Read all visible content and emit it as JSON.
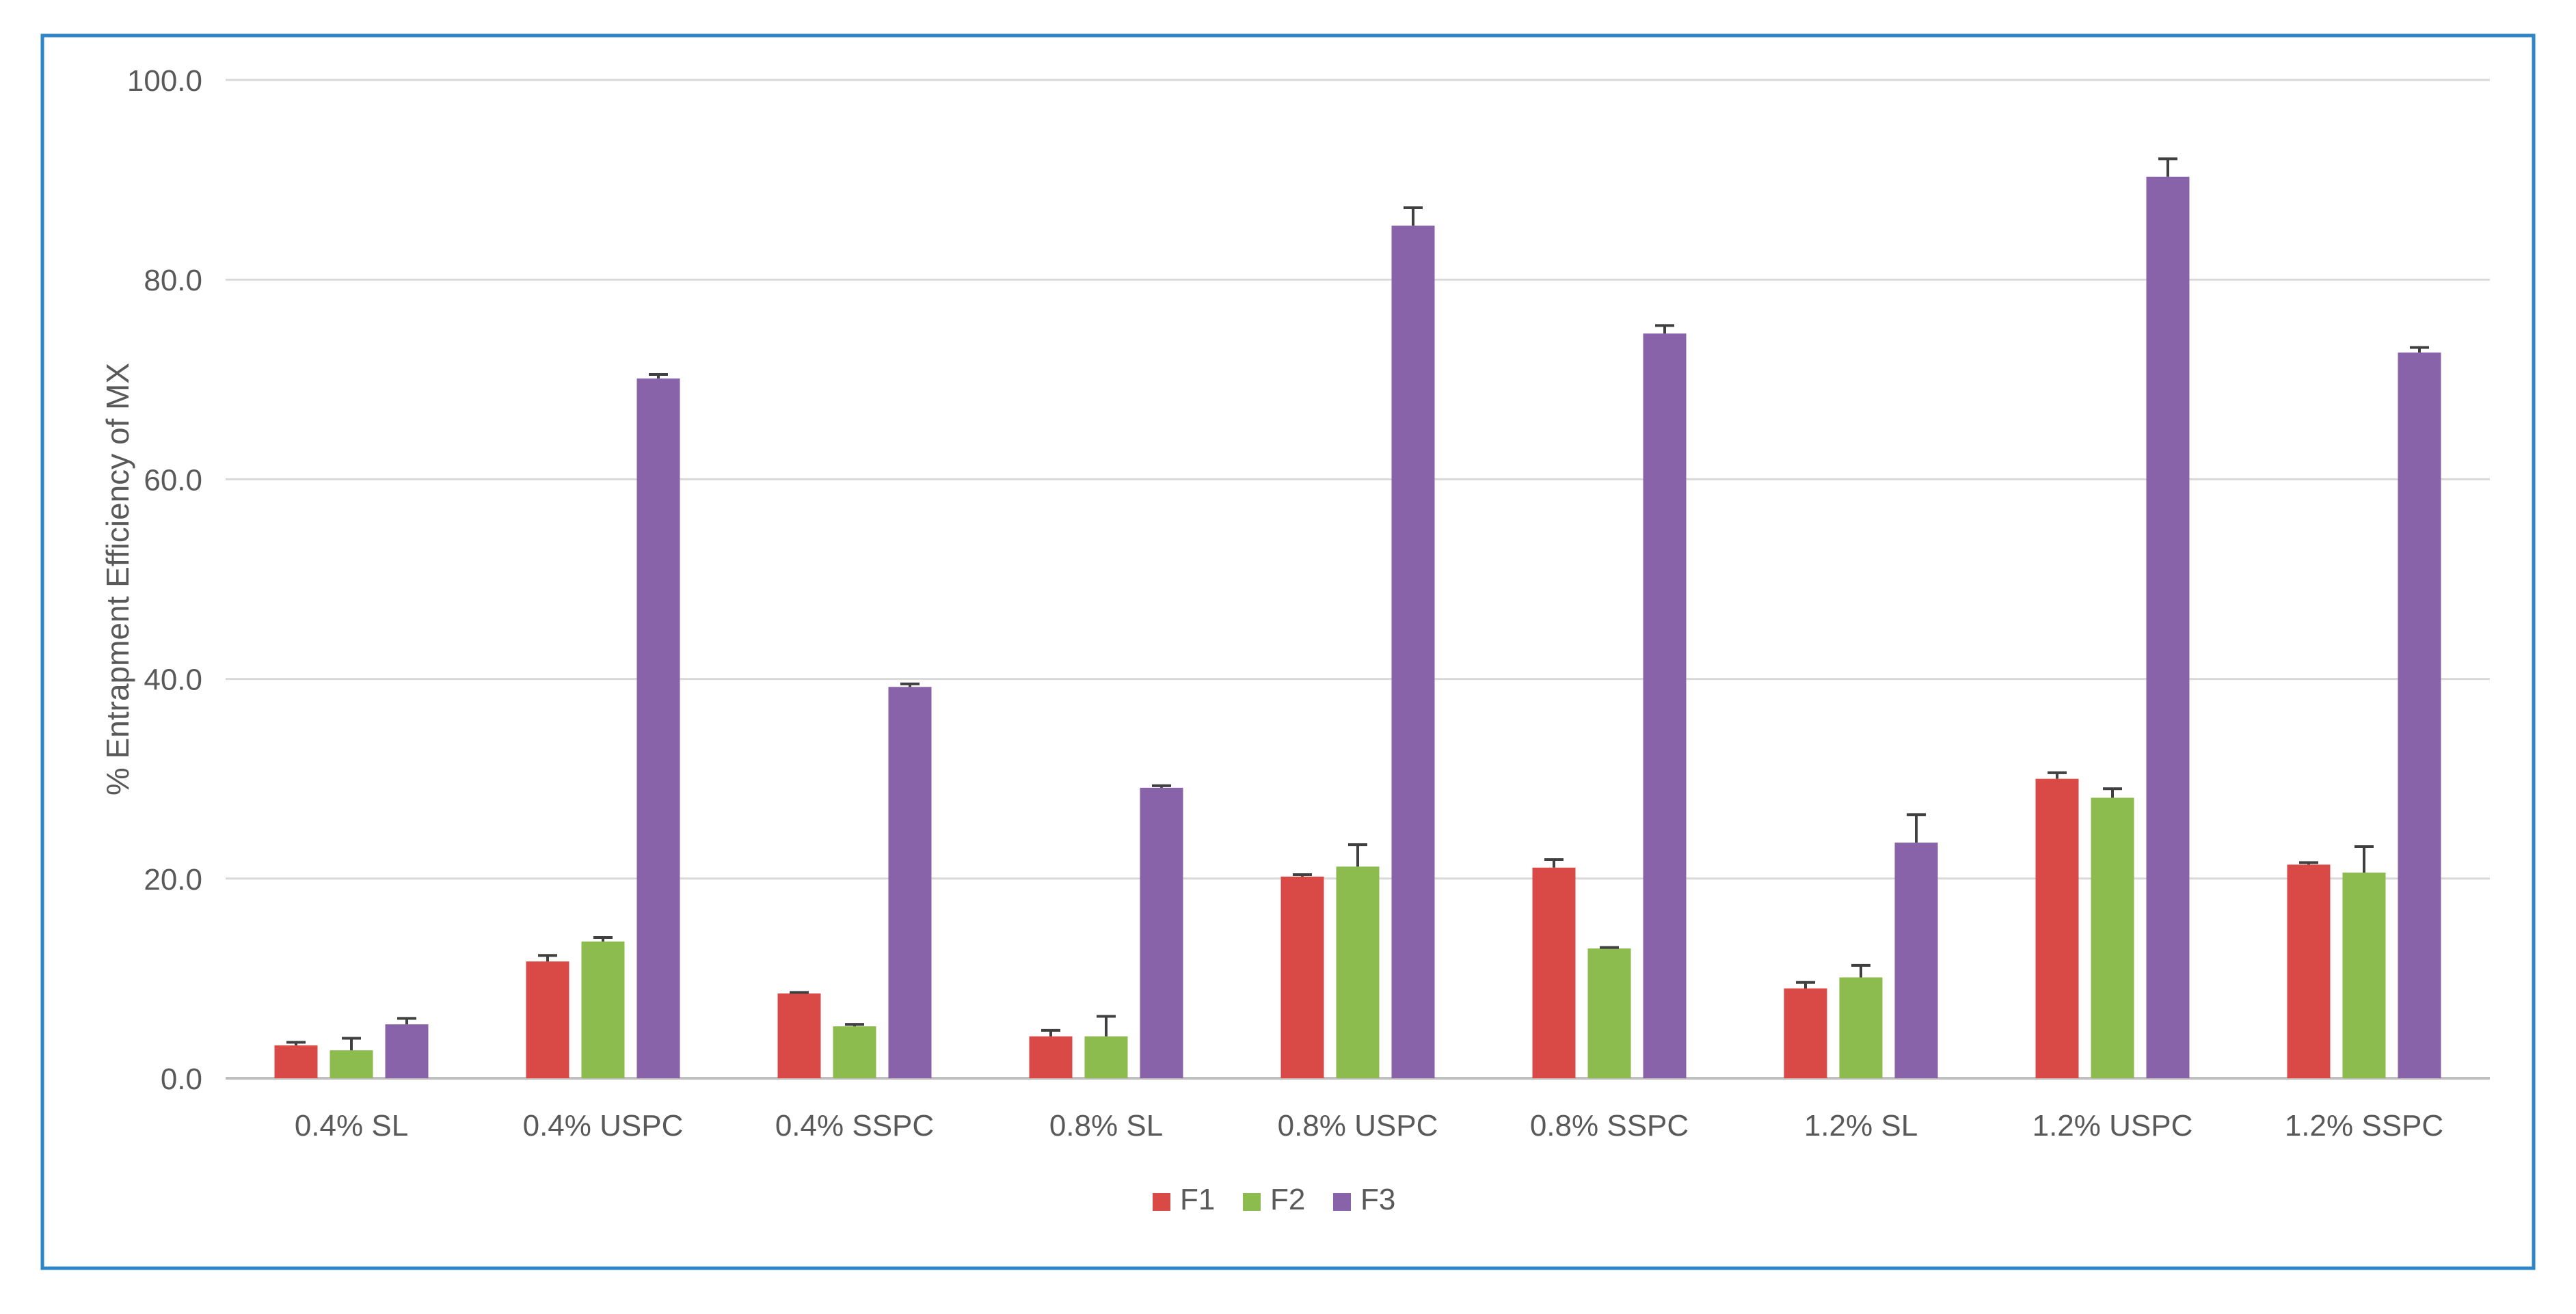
{
  "chart_data": {
    "type": "bar",
    "title": "",
    "xlabel": "",
    "ylabel": "% Entrapment Efficiency of MX",
    "ylim": [
      0,
      100
    ],
    "yticks": [
      "0.0",
      "20.0",
      "40.0",
      "60.0",
      "80.0",
      "100.0"
    ],
    "grid": true,
    "legend_position": "bottom",
    "categories": [
      "0.4% SL",
      "0.4% USPC",
      "0.4% SSPC",
      "0.8% SL",
      "0.8% USPC",
      "0.8% SSPC",
      "1.2% SL",
      "1.2% USPC",
      "1.2% SSPC"
    ],
    "series": [
      {
        "name": "F1",
        "color": "#d94a46",
        "values": [
          3.3,
          11.7,
          8.5,
          4.2,
          20.2,
          21.1,
          9.0,
          30.0,
          21.4
        ],
        "errors": [
          0.3,
          0.6,
          0.1,
          0.6,
          0.2,
          0.8,
          0.6,
          0.6,
          0.2
        ]
      },
      {
        "name": "F2",
        "color": "#8cbb4e",
        "values": [
          2.8,
          13.7,
          5.2,
          4.2,
          21.2,
          13.0,
          10.1,
          28.1,
          20.6
        ],
        "errors": [
          1.2,
          0.4,
          0.2,
          2.0,
          2.2,
          0.1,
          1.2,
          0.9,
          2.6
        ]
      },
      {
        "name": "F3",
        "color": "#8963a9",
        "values": [
          5.4,
          70.1,
          39.2,
          29.1,
          85.4,
          74.6,
          23.6,
          90.3,
          72.7
        ],
        "errors": [
          0.6,
          0.4,
          0.3,
          0.2,
          1.8,
          0.8,
          2.8,
          1.8,
          0.5
        ]
      }
    ]
  }
}
